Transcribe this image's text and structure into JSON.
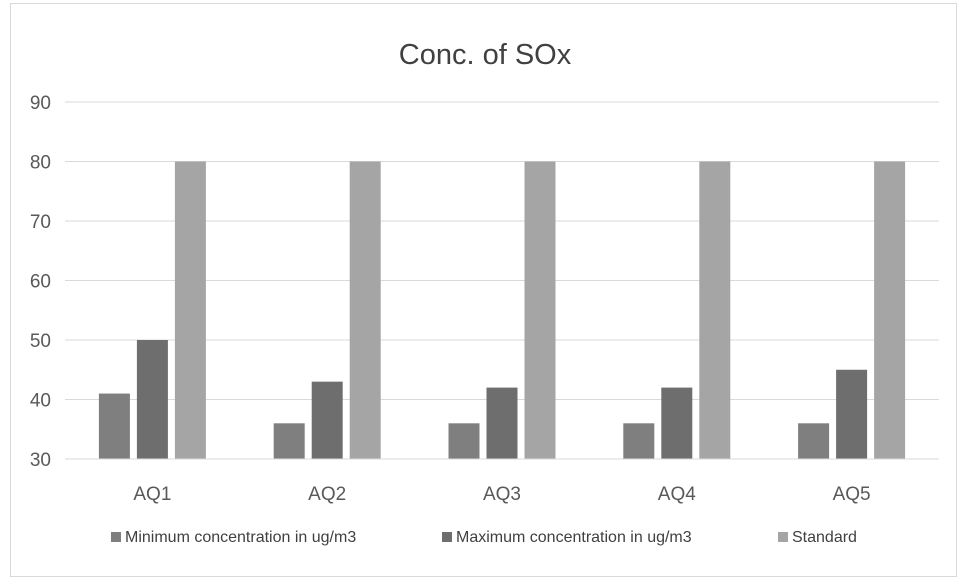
{
  "chart_data": {
    "type": "bar",
    "title": "Conc. of SOx",
    "categories": [
      "AQ1",
      "AQ2",
      "AQ3",
      "AQ4",
      "AQ5"
    ],
    "series": [
      {
        "name": "Minimum concentration in ug/m3",
        "values": [
          41,
          36,
          36,
          36,
          36
        ],
        "color": "#7f7f7f"
      },
      {
        "name": "Maximum concentration in ug/m3",
        "values": [
          50,
          43,
          42,
          42,
          45
        ],
        "color": "#6e6e6e"
      },
      {
        "name": "Standard",
        "values": [
          80,
          80,
          80,
          80,
          80
        ],
        "color": "#a5a5a5"
      }
    ],
    "ylim": [
      30,
      90
    ],
    "yticks": [
      30,
      40,
      50,
      60,
      70,
      80,
      90
    ],
    "grid": true,
    "legend_position": "bottom"
  }
}
